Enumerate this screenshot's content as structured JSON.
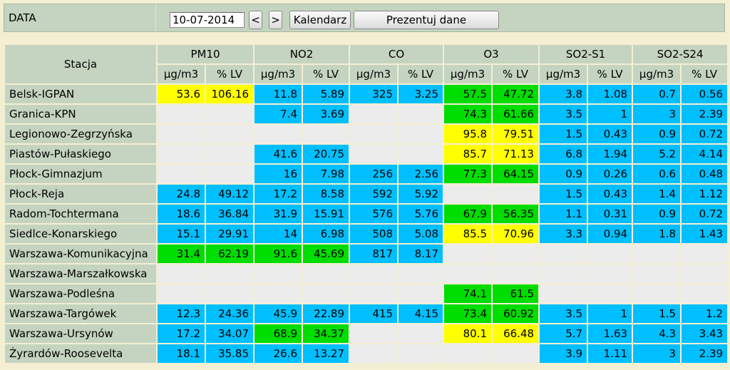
{
  "header": {
    "label": "DATA",
    "date_value": "10-07-2014",
    "prev_label": "<",
    "next_label": ">",
    "calendar_label": "Kalendarz",
    "present_label": "Prezentuj dane"
  },
  "colors": {
    "good": "#00bfff",
    "moderate": "#00dd00",
    "sufficient": "#ffff00",
    "empty": "#ececec",
    "header": "#c4d4c0"
  },
  "table": {
    "station_header": "Stacja",
    "pollutants": [
      "PM10",
      "NO2",
      "CO",
      "O3",
      "SO2-S1",
      "SO2-S24"
    ],
    "unit_label": "µg/m3",
    "lv_label": "% LV",
    "rows": [
      {
        "station": "Belsk-IGPAN",
        "cells": [
          [
            "53.6",
            "106.16",
            "y"
          ],
          [
            "11.8",
            "5.89",
            "b"
          ],
          [
            "325",
            "3.25",
            "b"
          ],
          [
            "57.5",
            "47.72",
            "g"
          ],
          [
            "3.8",
            "1.08",
            "b"
          ],
          [
            "0.7",
            "0.56",
            "b"
          ]
        ]
      },
      {
        "station": "Granica-KPN",
        "cells": [
          [
            "",
            "",
            "e"
          ],
          [
            "7.4",
            "3.69",
            "b"
          ],
          [
            "",
            "",
            "e"
          ],
          [
            "74.3",
            "61.66",
            "g"
          ],
          [
            "3.5",
            "1",
            "b"
          ],
          [
            "3",
            "2.39",
            "b"
          ]
        ]
      },
      {
        "station": "Legionowo-Zegrzyńska",
        "cells": [
          [
            "",
            "",
            "e"
          ],
          [
            "",
            "",
            "e"
          ],
          [
            "",
            "",
            "e"
          ],
          [
            "95.8",
            "79.51",
            "y"
          ],
          [
            "1.5",
            "0.43",
            "b"
          ],
          [
            "0.9",
            "0.72",
            "b"
          ]
        ]
      },
      {
        "station": "Piastów-Pułaskiego",
        "cells": [
          [
            "",
            "",
            "e"
          ],
          [
            "41.6",
            "20.75",
            "b"
          ],
          [
            "",
            "",
            "e"
          ],
          [
            "85.7",
            "71.13",
            "y"
          ],
          [
            "6.8",
            "1.94",
            "b"
          ],
          [
            "5.2",
            "4.14",
            "b"
          ]
        ]
      },
      {
        "station": "Płock-Gimnazjum",
        "cells": [
          [
            "",
            "",
            "e"
          ],
          [
            "16",
            "7.98",
            "b"
          ],
          [
            "256",
            "2.56",
            "b"
          ],
          [
            "77.3",
            "64.15",
            "g"
          ],
          [
            "0.9",
            "0.26",
            "b"
          ],
          [
            "0.6",
            "0.48",
            "b"
          ]
        ]
      },
      {
        "station": "Płock-Reja",
        "cells": [
          [
            "24.8",
            "49.12",
            "b"
          ],
          [
            "17.2",
            "8.58",
            "b"
          ],
          [
            "592",
            "5.92",
            "b"
          ],
          [
            "",
            "",
            "e"
          ],
          [
            "1.5",
            "0.43",
            "b"
          ],
          [
            "1.4",
            "1.12",
            "b"
          ]
        ]
      },
      {
        "station": "Radom-Tochtermana",
        "cells": [
          [
            "18.6",
            "36.84",
            "b"
          ],
          [
            "31.9",
            "15.91",
            "b"
          ],
          [
            "576",
            "5.76",
            "b"
          ],
          [
            "67.9",
            "56.35",
            "g"
          ],
          [
            "1.1",
            "0.31",
            "b"
          ],
          [
            "0.9",
            "0.72",
            "b"
          ]
        ]
      },
      {
        "station": "Siedlce-Konarskiego",
        "cells": [
          [
            "15.1",
            "29.91",
            "b"
          ],
          [
            "14",
            "6.98",
            "b"
          ],
          [
            "508",
            "5.08",
            "b"
          ],
          [
            "85.5",
            "70.96",
            "y"
          ],
          [
            "3.3",
            "0.94",
            "b"
          ],
          [
            "1.8",
            "1.43",
            "b"
          ]
        ]
      },
      {
        "station": "Warszawa-Komunikacyjna",
        "cells": [
          [
            "31.4",
            "62.19",
            "g"
          ],
          [
            "91.6",
            "45.69",
            "g"
          ],
          [
            "817",
            "8.17",
            "b"
          ],
          [
            "",
            "",
            "e"
          ],
          [
            "",
            "",
            "e"
          ],
          [
            "",
            "",
            "e"
          ]
        ]
      },
      {
        "station": "Warszawa-Marszałkowska",
        "cells": [
          [
            "",
            "",
            "e"
          ],
          [
            "",
            "",
            "e"
          ],
          [
            "",
            "",
            "e"
          ],
          [
            "",
            "",
            "e"
          ],
          [
            "",
            "",
            "e"
          ],
          [
            "",
            "",
            "e"
          ]
        ]
      },
      {
        "station": "Warszawa-Podleśna",
        "cells": [
          [
            "",
            "",
            "e"
          ],
          [
            "",
            "",
            "e"
          ],
          [
            "",
            "",
            "e"
          ],
          [
            "74.1",
            "61.5",
            "g"
          ],
          [
            "",
            "",
            "e"
          ],
          [
            "",
            "",
            "e"
          ]
        ]
      },
      {
        "station": "Warszawa-Targówek",
        "cells": [
          [
            "12.3",
            "24.36",
            "b"
          ],
          [
            "45.9",
            "22.89",
            "b"
          ],
          [
            "415",
            "4.15",
            "b"
          ],
          [
            "73.4",
            "60.92",
            "g"
          ],
          [
            "3.5",
            "1",
            "b"
          ],
          [
            "1.5",
            "1.2",
            "b"
          ]
        ]
      },
      {
        "station": "Warszawa-Ursynów",
        "cells": [
          [
            "17.2",
            "34.07",
            "b"
          ],
          [
            "68.9",
            "34.37",
            "g"
          ],
          [
            "",
            "",
            "e"
          ],
          [
            "80.1",
            "66.48",
            "y"
          ],
          [
            "5.7",
            "1.63",
            "b"
          ],
          [
            "4.3",
            "3.43",
            "b"
          ]
        ]
      },
      {
        "station": "Żyrardów-Roosevelta",
        "cells": [
          [
            "18.1",
            "35.85",
            "b"
          ],
          [
            "26.6",
            "13.27",
            "b"
          ],
          [
            "",
            "",
            "e"
          ],
          [
            "",
            "",
            "e"
          ],
          [
            "3.9",
            "1.11",
            "b"
          ],
          [
            "3",
            "2.39",
            "b"
          ]
        ]
      }
    ]
  }
}
